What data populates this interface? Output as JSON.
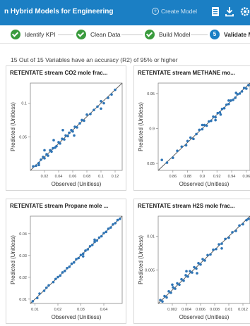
{
  "header": {
    "title": "n Hybrid Models for Engineering",
    "create_label": "Create Model",
    "icons": [
      "document-icon",
      "download-icon",
      "settings-icon"
    ]
  },
  "steps": [
    {
      "label": "Identify KPI",
      "state": "done"
    },
    {
      "label": "Clean Data",
      "state": "done"
    },
    {
      "label": "Build Model",
      "state": "done"
    },
    {
      "number": "5",
      "label": "Validate M",
      "state": "active"
    }
  ],
  "summary": "15 Out of 15 Variables have an accuracy (R2) of 95% or higher",
  "colors": {
    "header": "#1b7fc4",
    "done": "#3a9b3d",
    "point": "#2e74b5",
    "fit_line": "#555555"
  },
  "chart_data": [
    {
      "type": "scatter",
      "title": "RETENTATE stream CO2 mole frac...",
      "xlabel": "Observed (Unitless)",
      "ylabel": "Predicted (Unitless)",
      "xlim": [
        0.0,
        0.13
      ],
      "ylim": [
        0.0,
        0.13
      ],
      "xticks": [
        "0.02",
        "0.04",
        "0.06",
        "0.08",
        "0.1",
        "0.12"
      ],
      "yticks": [
        "0.05",
        "0.1"
      ],
      "xticks_v": [
        0.02,
        0.04,
        0.06,
        0.08,
        0.1,
        0.12
      ],
      "yticks_v": [
        0.05,
        0.1
      ],
      "fit_line": [
        [
          0.0,
          0.0
        ],
        [
          0.13,
          0.13
        ]
      ],
      "x": [
        0.004,
        0.008,
        0.012,
        0.015,
        0.018,
        0.02,
        0.023,
        0.025,
        0.028,
        0.03,
        0.032,
        0.035,
        0.037,
        0.04,
        0.042,
        0.045,
        0.048,
        0.05,
        0.053,
        0.055,
        0.058,
        0.06,
        0.063,
        0.066,
        0.07,
        0.073,
        0.076,
        0.08,
        0.085,
        0.09,
        0.095,
        0.1,
        0.104,
        0.11,
        0.115,
        0.12,
        0.033,
        0.046,
        0.062,
        0.02,
        0.012,
        0.1
      ],
      "y": [
        0.006,
        0.007,
        0.011,
        0.016,
        0.02,
        0.018,
        0.024,
        0.022,
        0.03,
        0.028,
        0.033,
        0.034,
        0.036,
        0.042,
        0.04,
        0.047,
        0.046,
        0.052,
        0.051,
        0.056,
        0.06,
        0.058,
        0.065,
        0.064,
        0.07,
        0.075,
        0.074,
        0.083,
        0.084,
        0.09,
        0.095,
        0.103,
        0.1,
        0.108,
        0.113,
        0.12,
        0.045,
        0.06,
        0.052,
        0.03,
        0.008,
        0.092
      ]
    },
    {
      "type": "scatter",
      "title": "RETENTATE stream METHANE mo...",
      "xlabel": "Observed (Unitless)",
      "ylabel": "Predicted (Unitless)",
      "xlim": [
        0.84,
        0.965
      ],
      "ylim": [
        0.84,
        0.965
      ],
      "xticks": [
        "0.86",
        "0.88",
        "0.9",
        "0.92",
        "0.94",
        "0.96"
      ],
      "yticks": [
        "0.85",
        "0.9",
        "0.95"
      ],
      "xticks_v": [
        0.86,
        0.88,
        0.9,
        0.92,
        0.94,
        0.96
      ],
      "yticks_v": [
        0.85,
        0.9,
        0.95
      ],
      "fit_line": [
        [
          0.84,
          0.84
        ],
        [
          0.965,
          0.965
        ]
      ],
      "x": [
        0.845,
        0.852,
        0.86,
        0.866,
        0.872,
        0.878,
        0.884,
        0.888,
        0.892,
        0.896,
        0.9,
        0.903,
        0.906,
        0.909,
        0.912,
        0.915,
        0.918,
        0.921,
        0.924,
        0.927,
        0.93,
        0.933,
        0.936,
        0.939,
        0.942,
        0.945,
        0.948,
        0.951,
        0.954,
        0.957,
        0.96,
        0.963,
        0.9,
        0.918,
        0.936,
        0.925,
        0.946,
        0.88
      ],
      "y": [
        0.855,
        0.851,
        0.858,
        0.868,
        0.874,
        0.876,
        0.887,
        0.885,
        0.892,
        0.898,
        0.899,
        0.905,
        0.904,
        0.91,
        0.911,
        0.917,
        0.916,
        0.922,
        0.923,
        0.928,
        0.929,
        0.934,
        0.935,
        0.94,
        0.941,
        0.944,
        0.949,
        0.95,
        0.953,
        0.958,
        0.957,
        0.962,
        0.905,
        0.912,
        0.94,
        0.92,
        0.951,
        0.882
      ]
    },
    {
      "type": "scatter",
      "title": "RETENTATE stream Propane mole ...",
      "xlabel": "Observed (Unitless)",
      "ylabel": "Predicted (Unitless)",
      "xlim": [
        0.008,
        0.048
      ],
      "ylim": [
        0.008,
        0.048
      ],
      "xticks": [
        "0.01",
        "0.02",
        "0.03",
        "0.04"
      ],
      "yticks": [
        "0.01",
        "0.02",
        "0.03",
        "0.04"
      ],
      "xticks_v": [
        0.01,
        0.02,
        0.03,
        0.04
      ],
      "yticks_v": [
        0.01,
        0.02,
        0.03,
        0.04
      ],
      "fit_line": [
        [
          0.008,
          0.008
        ],
        [
          0.048,
          0.048
        ]
      ],
      "x": [
        0.009,
        0.011,
        0.012,
        0.014,
        0.015,
        0.016,
        0.018,
        0.019,
        0.02,
        0.021,
        0.022,
        0.023,
        0.024,
        0.025,
        0.026,
        0.027,
        0.028,
        0.029,
        0.03,
        0.031,
        0.032,
        0.033,
        0.034,
        0.035,
        0.036,
        0.037,
        0.038,
        0.039,
        0.04,
        0.041,
        0.042,
        0.043,
        0.044,
        0.045,
        0.046,
        0.047,
        0.031,
        0.036
      ],
      "y": [
        0.009,
        0.0105,
        0.0125,
        0.0138,
        0.0152,
        0.0163,
        0.0178,
        0.0192,
        0.0201,
        0.0208,
        0.0222,
        0.0229,
        0.0242,
        0.0248,
        0.0262,
        0.0268,
        0.0283,
        0.0288,
        0.0302,
        0.0308,
        0.0322,
        0.0328,
        0.0342,
        0.0348,
        0.0362,
        0.0368,
        0.0382,
        0.0388,
        0.0402,
        0.0408,
        0.0422,
        0.0428,
        0.0442,
        0.0448,
        0.0462,
        0.0468,
        0.0296,
        0.0372
      ]
    },
    {
      "type": "scatter",
      "title": "RETENTATE stream H2S mole frac...",
      "xlabel": "Observed (Unitless)",
      "ylabel": "Predicted (Unitless)",
      "xlim": [
        0.0,
        0.013
      ],
      "ylim": [
        0.0,
        0.013
      ],
      "xticks": [
        "0.002",
        "0.004",
        "0.006",
        "0.008",
        "0.01",
        "0.012"
      ],
      "yticks": [
        "0.005",
        "0.01"
      ],
      "xticks_v": [
        0.002,
        0.004,
        0.006,
        0.008,
        0.01,
        0.012
      ],
      "yticks_v": [
        0.005,
        0.01
      ],
      "fit_line": [
        [
          0.0,
          0.0
        ],
        [
          0.013,
          0.013
        ]
      ],
      "x": [
        0.0003,
        0.0006,
        0.0009,
        0.0012,
        0.0015,
        0.0018,
        0.0021,
        0.0024,
        0.0027,
        0.003,
        0.0033,
        0.0036,
        0.0039,
        0.0042,
        0.0045,
        0.0048,
        0.0051,
        0.0054,
        0.0057,
        0.006,
        0.0063,
        0.0066,
        0.007,
        0.0074,
        0.0078,
        0.0082,
        0.0086,
        0.009,
        0.0095,
        0.01,
        0.0105,
        0.011,
        0.0115,
        0.012,
        0.0125,
        0.0128,
        0.004,
        0.0055,
        0.002,
        0.009
      ],
      "y": [
        0.0005,
        0.0003,
        0.0011,
        0.0009,
        0.0018,
        0.0016,
        0.0024,
        0.0022,
        0.003,
        0.0028,
        0.0036,
        0.0034,
        0.0042,
        0.004,
        0.0048,
        0.0046,
        0.0054,
        0.0052,
        0.006,
        0.0058,
        0.0066,
        0.0064,
        0.0072,
        0.0073,
        0.008,
        0.0081,
        0.0088,
        0.0089,
        0.0096,
        0.0098,
        0.0106,
        0.0108,
        0.0116,
        0.0118,
        0.0124,
        0.0126,
        0.0048,
        0.0045,
        0.0028,
        0.0082
      ]
    }
  ]
}
